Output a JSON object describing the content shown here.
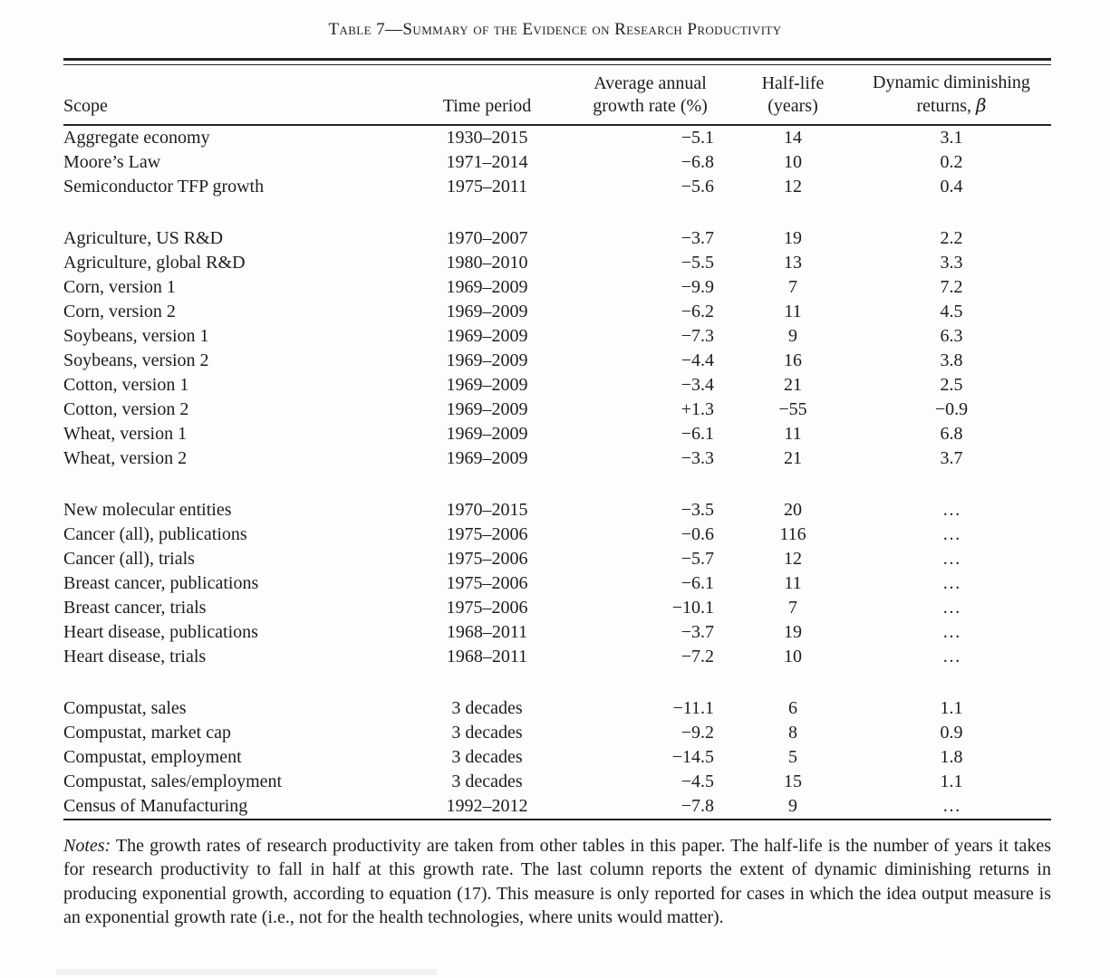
{
  "table": {
    "title": "Table 7—Summary of the Evidence on Research Productivity",
    "columns": [
      {
        "key": "scope",
        "line1": "",
        "line2": "Scope",
        "align": "left"
      },
      {
        "key": "period",
        "line1": "",
        "line2": "Time period",
        "align": "center"
      },
      {
        "key": "growth",
        "line1": "Average annual",
        "line2": "growth rate (%)",
        "align": "right"
      },
      {
        "key": "halflife",
        "line1": "Half-life",
        "line2": "(years)",
        "align": "center"
      },
      {
        "key": "beta",
        "line1": "Dynamic diminishing",
        "line2_prefix": "returns, ",
        "line2_symbol": "β",
        "align": "center"
      }
    ],
    "groups": [
      [
        [
          "Aggregate economy",
          "1930–2015",
          "−5.1",
          "14",
          "3.1"
        ],
        [
          "Moore’s Law",
          "1971–2014",
          "−6.8",
          "10",
          "0.2"
        ],
        [
          "Semiconductor TFP growth",
          "1975–2011",
          "−5.6",
          "12",
          "0.4"
        ]
      ],
      [
        [
          "Agriculture, US R&D",
          "1970–2007",
          "−3.7",
          "19",
          "2.2"
        ],
        [
          "Agriculture, global R&D",
          "1980–2010",
          "−5.5",
          "13",
          "3.3"
        ],
        [
          "Corn, version 1",
          "1969–2009",
          "−9.9",
          "7",
          "7.2"
        ],
        [
          "Corn, version 2",
          "1969–2009",
          "−6.2",
          "11",
          "4.5"
        ],
        [
          "Soybeans, version 1",
          "1969–2009",
          "−7.3",
          "9",
          "6.3"
        ],
        [
          "Soybeans, version 2",
          "1969–2009",
          "−4.4",
          "16",
          "3.8"
        ],
        [
          "Cotton, version 1",
          "1969–2009",
          "−3.4",
          "21",
          "2.5"
        ],
        [
          "Cotton, version 2",
          "1969–2009",
          "+1.3",
          "−55",
          "−0.9"
        ],
        [
          "Wheat, version 1",
          "1969–2009",
          "−6.1",
          "11",
          "6.8"
        ],
        [
          "Wheat, version 2",
          "1969–2009",
          "−3.3",
          "21",
          "3.7"
        ]
      ],
      [
        [
          "New molecular entities",
          "1970–2015",
          "−3.5",
          "20",
          "…"
        ],
        [
          "Cancer (all), publications",
          "1975–2006",
          "−0.6",
          "116",
          "…"
        ],
        [
          "Cancer (all), trials",
          "1975–2006",
          "−5.7",
          "12",
          "…"
        ],
        [
          "Breast cancer, publications",
          "1975–2006",
          "−6.1",
          "11",
          "…"
        ],
        [
          "Breast cancer, trials",
          "1975–2006",
          "−10.1",
          "7",
          "…"
        ],
        [
          "Heart disease, publications",
          "1968–2011",
          "−3.7",
          "19",
          "…"
        ],
        [
          "Heart disease, trials",
          "1968–2011",
          "−7.2",
          "10",
          "…"
        ]
      ],
      [
        [
          "Compustat, sales",
          "3 decades",
          "−11.1",
          "6",
          "1.1"
        ],
        [
          "Compustat, market cap",
          "3 decades",
          "−9.2",
          "8",
          "0.9"
        ],
        [
          "Compustat, employment",
          "3 decades",
          "−14.5",
          "5",
          "1.8"
        ],
        [
          "Compustat, sales/employment",
          "3 decades",
          "−4.5",
          "15",
          "1.1"
        ],
        [
          "Census of Manufacturing",
          "1992–2012",
          "−7.8",
          "9",
          "…"
        ]
      ]
    ]
  },
  "notes": {
    "label": "Notes:",
    "text": " The growth rates of research productivity are taken from other tables in this paper. The half-life is the number of years it takes for research productivity to fall in half at this growth rate. The last column reports the extent of dynamic diminishing returns in producing exponential growth, according to equation (17). This measure is only reported for cases in which the idea output measure is an exponential growth rate (i.e., not for the health technologies, where units would matter)."
  }
}
